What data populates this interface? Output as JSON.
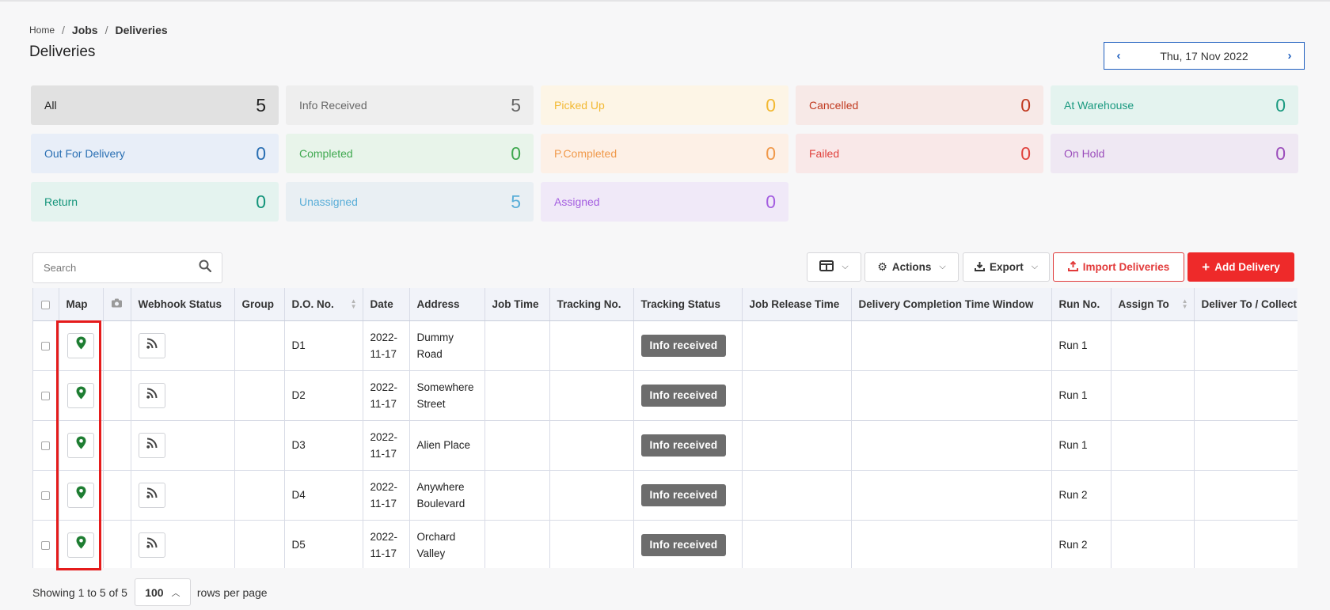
{
  "breadcrumb": {
    "home": "Home",
    "sep": "/",
    "jobs": "Jobs",
    "current": "Deliveries"
  },
  "page_title": "Deliveries",
  "date_nav": {
    "prev": "‹",
    "date": "Thu, 17 Nov 2022",
    "next": "›"
  },
  "status_cards": [
    {
      "label": "All",
      "count": "5",
      "bg": "#e1e1e1",
      "color": "#222222"
    },
    {
      "label": "Info Received",
      "count": "5",
      "bg": "#eeeeee",
      "color": "#666666"
    },
    {
      "label": "Picked Up",
      "count": "0",
      "bg": "#fdf5e6",
      "color": "#f2b933"
    },
    {
      "label": "Cancelled",
      "count": "0",
      "bg": "#f7e9e7",
      "color": "#c0391f"
    },
    {
      "label": "At Warehouse",
      "count": "0",
      "bg": "#e4f3ef",
      "color": "#1b9a80"
    },
    {
      "label": "Out For Delivery",
      "count": "0",
      "bg": "#e8eef8",
      "color": "#2a6fb3"
    },
    {
      "label": "Completed",
      "count": "0",
      "bg": "#e8f4ea",
      "color": "#3fa84f"
    },
    {
      "label": "P.Completed",
      "count": "0",
      "bg": "#fdf0e6",
      "color": "#f0994a"
    },
    {
      "label": "Failed",
      "count": "0",
      "bg": "#f9e8e8",
      "color": "#e0413c"
    },
    {
      "label": "On Hold",
      "count": "0",
      "bg": "#efe8f3",
      "color": "#9b4dbb"
    },
    {
      "label": "Return",
      "count": "0",
      "bg": "#e4f3ef",
      "color": "#13947a"
    },
    {
      "label": "Unassigned",
      "count": "5",
      "bg": "#e9eff3",
      "color": "#5aaed8"
    },
    {
      "label": "Assigned",
      "count": "0",
      "bg": "#f0e9f8",
      "color": "#a45ee0"
    }
  ],
  "search": {
    "placeholder": "Search"
  },
  "toolbar": {
    "actions": "Actions",
    "export": "Export",
    "import": "Import Deliveries",
    "add": "Add Delivery"
  },
  "table": {
    "headers": {
      "map": "Map",
      "webhook": "Webhook Status",
      "group": "Group",
      "do_no": "D.O. No.",
      "date": "Date",
      "address": "Address",
      "job_time": "Job Time",
      "tracking_no": "Tracking No.",
      "tracking_status": "Tracking Status",
      "release": "Job Release Time",
      "window": "Delivery Completion Time Window",
      "run": "Run No.",
      "assign": "Assign To",
      "deliver": "Deliver To / Collect From"
    },
    "rows": [
      {
        "do_no": "D1",
        "date": "2022-11-17",
        "address": "Dummy Road",
        "status": "Info received",
        "run": "Run 1"
      },
      {
        "do_no": "D2",
        "date": "2022-11-17",
        "address": "Somewhere Street",
        "status": "Info received",
        "run": "Run 1"
      },
      {
        "do_no": "D3",
        "date": "2022-11-17",
        "address": "Alien Place",
        "status": "Info received",
        "run": "Run 1"
      },
      {
        "do_no": "D4",
        "date": "2022-11-17",
        "address": "Anywhere Boulevard",
        "status": "Info received",
        "run": "Run 2"
      },
      {
        "do_no": "D5",
        "date": "2022-11-17",
        "address": "Orchard Valley",
        "status": "Info received",
        "run": "Run 2"
      }
    ]
  },
  "pager": {
    "showing": "Showing 1 to 5 of 5",
    "per_page": "100",
    "suffix": "rows per page"
  },
  "colors": {
    "accent_blue": "#1f5fbf",
    "danger": "#ee2a2a",
    "map_pin": "#1e7d32",
    "badge": "#6d6d6d",
    "highlight": "#e51b1b"
  },
  "icons": {
    "search": "search-icon",
    "columns": "columns-icon",
    "gear": "gear-icon",
    "download": "download-icon",
    "upload": "upload-icon",
    "plus": "plus-icon",
    "camera": "camera-icon",
    "map_pin": "map-pin-icon",
    "rss": "rss-icon"
  }
}
